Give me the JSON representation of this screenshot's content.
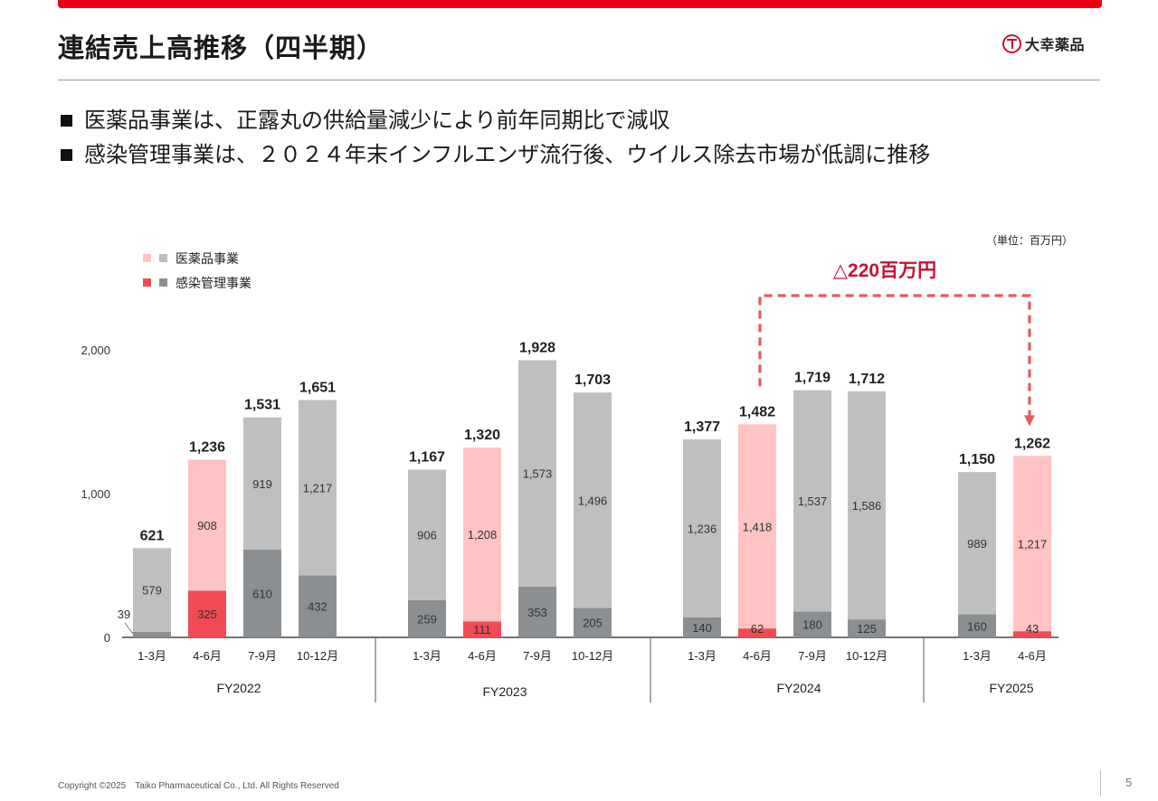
{
  "page": {
    "title": "連結売上高推移（四半期）",
    "logo_text": "大幸薬品",
    "bullets": [
      "医薬品事業は、正露丸の供給量減少により前年同期比で減収",
      "感染管理事業は、２０２４年末インフルエンザ流行後、ウイルス除去市場が低調に推移"
    ],
    "copyright": "Copyright ©2025　Taiko Pharmaceutical Co., Ltd. All Rights Reserved",
    "page_number": "5"
  },
  "colors": {
    "brand_red": "#e60012",
    "pharma_gray": "#bfbfbf",
    "infection_gray": "#8c8f92",
    "pharma_highlight": "#ffc3c3",
    "infection_highlight": "#f04b55",
    "callout_red": "#e35a60",
    "callout_text": "#c8102e"
  },
  "chart_data": {
    "type": "bar",
    "stacked": true,
    "unit_label": "（単位：百万円）",
    "ylim": [
      0,
      2000
    ],
    "yticks": [
      0,
      1000,
      2000
    ],
    "ytick_labels": [
      "0",
      "1,000",
      "2,000"
    ],
    "legend": [
      {
        "label": "医薬品事業",
        "colors": [
          "#ffc3c3",
          "#bfbfbf"
        ]
      },
      {
        "label": "感染管理事業",
        "colors": [
          "#f04b55",
          "#8c8f92"
        ]
      }
    ],
    "groups": [
      {
        "name": "FY2022",
        "bars": [
          {
            "label": "1-3月",
            "total": 621,
            "total_label": "621",
            "infection": 39,
            "infection_label": "39",
            "pharma": 579,
            "pharma_label": "579",
            "highlight": false
          },
          {
            "label": "4-6月",
            "total": 1236,
            "total_label": "1,236",
            "infection": 325,
            "infection_label": "325",
            "pharma": 908,
            "pharma_label": "908",
            "highlight": true
          },
          {
            "label": "7-9月",
            "total": 1531,
            "total_label": "1,531",
            "infection": 610,
            "infection_label": "610",
            "pharma": 919,
            "pharma_label": "919",
            "highlight": false
          },
          {
            "label": "10-12月",
            "total": 1651,
            "total_label": "1,651",
            "infection": 432,
            "infection_label": "432",
            "pharma": 1217,
            "pharma_label": "1,217",
            "highlight": false
          }
        ]
      },
      {
        "name": "FY2023",
        "bars": [
          {
            "label": "1-3月",
            "total": 1167,
            "total_label": "1,167",
            "infection": 259,
            "infection_label": "259",
            "pharma": 906,
            "pharma_label": "906",
            "highlight": false
          },
          {
            "label": "4-6月",
            "total": 1320,
            "total_label": "1,320",
            "infection": 111,
            "infection_label": "111",
            "pharma": 1208,
            "pharma_label": "1,208",
            "highlight": true
          },
          {
            "label": "7-9月",
            "total": 1928,
            "total_label": "1,928",
            "infection": 353,
            "infection_label": "353",
            "pharma": 1573,
            "pharma_label": "1,573",
            "highlight": false
          },
          {
            "label": "10-12月",
            "total": 1703,
            "total_label": "1,703",
            "infection": 205,
            "infection_label": "205",
            "pharma": 1496,
            "pharma_label": "1,496",
            "highlight": false
          }
        ]
      },
      {
        "name": "FY2024",
        "bars": [
          {
            "label": "1-3月",
            "total": 1377,
            "total_label": "1,377",
            "infection": 140,
            "infection_label": "140",
            "pharma": 1236,
            "pharma_label": "1,236",
            "highlight": false
          },
          {
            "label": "4-6月",
            "total": 1482,
            "total_label": "1,482",
            "infection": 62,
            "infection_label": "62",
            "pharma": 1418,
            "pharma_label": "1,418",
            "highlight": true
          },
          {
            "label": "7-9月",
            "total": 1719,
            "total_label": "1,719",
            "infection": 180,
            "infection_label": "180",
            "pharma": 1537,
            "pharma_label": "1,537",
            "highlight": false
          },
          {
            "label": "10-12月",
            "total": 1712,
            "total_label": "1,712",
            "infection": 125,
            "infection_label": "125",
            "pharma": 1586,
            "pharma_label": "1,586",
            "highlight": false
          }
        ]
      },
      {
        "name": "FY2025",
        "bars": [
          {
            "label": "1-3月",
            "total": 1150,
            "total_label": "1,150",
            "infection": 160,
            "infection_label": "160",
            "pharma": 989,
            "pharma_label": "989",
            "highlight": false
          },
          {
            "label": "4-6月",
            "total": 1262,
            "total_label": "1,262",
            "infection": 43,
            "infection_label": "43",
            "pharma": 1217,
            "pharma_label": "1,217",
            "highlight": true
          }
        ]
      }
    ],
    "annotation": {
      "text": "△220百万円",
      "from": {
        "group": "FY2024",
        "bar": "4-6月"
      },
      "to": {
        "group": "FY2025",
        "bar": "4-6月"
      }
    }
  }
}
